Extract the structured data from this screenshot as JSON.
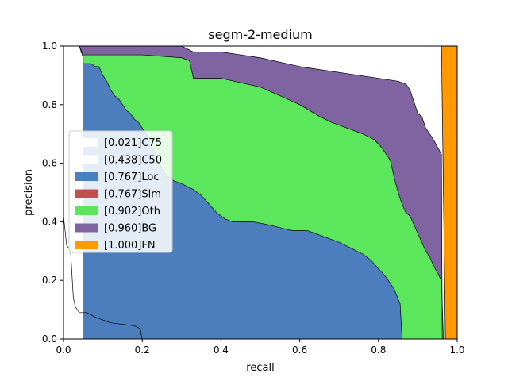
{
  "chart_data": {
    "type": "area",
    "title": "segm-2-medium",
    "xlabel": "recall",
    "ylabel": "precision",
    "xlim": [
      0,
      1
    ],
    "ylim": [
      0,
      1
    ],
    "xticks": [
      "0.0",
      "0.2",
      "0.4",
      "0.6",
      "0.8",
      "1.0"
    ],
    "yticks": [
      "0.0",
      "0.2",
      "0.4",
      "0.6",
      "0.8",
      "1.0"
    ],
    "grid": false,
    "legend_position": "center-left",
    "series": [
      {
        "name": "[0.021]C75",
        "color": "#ffffff",
        "points": [
          [
            0.0,
            0.42
          ],
          [
            0.008,
            0.32
          ],
          [
            0.018,
            0.3
          ],
          [
            0.025,
            0.14
          ],
          [
            0.03,
            0.11
          ],
          [
            0.04,
            0.09
          ],
          [
            0.06,
            0.09
          ],
          [
            0.08,
            0.075
          ],
          [
            0.1,
            0.065
          ],
          [
            0.11,
            0.06
          ],
          [
            0.12,
            0.055
          ],
          [
            0.15,
            0.05
          ],
          [
            0.18,
            0.045
          ],
          [
            0.195,
            0.035
          ],
          [
            0.198,
            0.01
          ],
          [
            0.2,
            0.0
          ]
        ]
      },
      {
        "name": "[0.438]C50",
        "color": "#ffffff",
        "points": [
          [
            0.0,
            0.42
          ],
          [
            0.008,
            0.32
          ],
          [
            0.018,
            0.3
          ],
          [
            0.025,
            0.14
          ],
          [
            0.03,
            0.11
          ],
          [
            0.04,
            0.09
          ],
          [
            0.06,
            0.09
          ],
          [
            0.08,
            0.075
          ],
          [
            0.1,
            0.065
          ],
          [
            0.11,
            0.06
          ],
          [
            0.12,
            0.055
          ],
          [
            0.15,
            0.05
          ],
          [
            0.18,
            0.045
          ],
          [
            0.195,
            0.035
          ],
          [
            0.198,
            0.01
          ],
          [
            0.2,
            0.0
          ]
        ]
      },
      {
        "name": "[0.767]Loc",
        "color": "#4c7ebd",
        "points": [
          [
            0.04,
            1.0
          ],
          [
            0.05,
            0.96
          ],
          [
            0.05,
            0.94
          ],
          [
            0.07,
            0.94
          ],
          [
            0.08,
            0.93
          ],
          [
            0.09,
            0.93
          ],
          [
            0.1,
            0.9
          ],
          [
            0.11,
            0.88
          ],
          [
            0.12,
            0.85
          ],
          [
            0.13,
            0.83
          ],
          [
            0.14,
            0.82
          ],
          [
            0.15,
            0.8
          ],
          [
            0.16,
            0.78
          ],
          [
            0.17,
            0.77
          ],
          [
            0.18,
            0.75
          ],
          [
            0.19,
            0.74
          ],
          [
            0.2,
            0.72
          ],
          [
            0.21,
            0.7
          ],
          [
            0.22,
            0.67
          ],
          [
            0.23,
            0.64
          ],
          [
            0.24,
            0.61
          ],
          [
            0.25,
            0.58
          ],
          [
            0.26,
            0.56
          ],
          [
            0.27,
            0.55
          ],
          [
            0.28,
            0.54
          ],
          [
            0.3,
            0.53
          ],
          [
            0.33,
            0.51
          ],
          [
            0.35,
            0.49
          ],
          [
            0.37,
            0.46
          ],
          [
            0.39,
            0.43
          ],
          [
            0.41,
            0.41
          ],
          [
            0.43,
            0.4
          ],
          [
            0.45,
            0.4
          ],
          [
            0.48,
            0.4
          ],
          [
            0.52,
            0.39
          ],
          [
            0.55,
            0.38
          ],
          [
            0.58,
            0.37
          ],
          [
            0.62,
            0.37
          ],
          [
            0.64,
            0.36
          ],
          [
            0.66,
            0.35
          ],
          [
            0.7,
            0.33
          ],
          [
            0.73,
            0.31
          ],
          [
            0.76,
            0.29
          ],
          [
            0.78,
            0.27
          ],
          [
            0.8,
            0.24
          ],
          [
            0.82,
            0.21
          ],
          [
            0.84,
            0.17
          ],
          [
            0.855,
            0.12
          ],
          [
            0.86,
            0.0
          ]
        ]
      },
      {
        "name": "[0.767]Sim",
        "color": "#c0504d",
        "points": []
      },
      {
        "name": "[0.902]Oth",
        "color": "#5ce65c",
        "points": [
          [
            0.04,
            1.0
          ],
          [
            0.05,
            0.97
          ],
          [
            0.1,
            0.97
          ],
          [
            0.2,
            0.97
          ],
          [
            0.3,
            0.96
          ],
          [
            0.32,
            0.95
          ],
          [
            0.33,
            0.89
          ],
          [
            0.4,
            0.89
          ],
          [
            0.5,
            0.86
          ],
          [
            0.55,
            0.83
          ],
          [
            0.6,
            0.8
          ],
          [
            0.65,
            0.76
          ],
          [
            0.68,
            0.74
          ],
          [
            0.72,
            0.72
          ],
          [
            0.76,
            0.7
          ],
          [
            0.79,
            0.68
          ],
          [
            0.81,
            0.65
          ],
          [
            0.83,
            0.61
          ],
          [
            0.84,
            0.55
          ],
          [
            0.85,
            0.5
          ],
          [
            0.86,
            0.46
          ],
          [
            0.87,
            0.43
          ],
          [
            0.88,
            0.42
          ],
          [
            0.89,
            0.39
          ],
          [
            0.9,
            0.36
          ],
          [
            0.91,
            0.33
          ],
          [
            0.92,
            0.3
          ],
          [
            0.93,
            0.28
          ],
          [
            0.94,
            0.25
          ],
          [
            0.96,
            0.2
          ],
          [
            0.965,
            0.0
          ]
        ]
      },
      {
        "name": "[0.960]BG",
        "color": "#8064a2",
        "points": [
          [
            0.05,
            1.0
          ],
          [
            0.3,
            1.0
          ],
          [
            0.33,
            0.98
          ],
          [
            0.4,
            0.98
          ],
          [
            0.45,
            0.97
          ],
          [
            0.5,
            0.96
          ],
          [
            0.6,
            0.93
          ],
          [
            0.7,
            0.91
          ],
          [
            0.8,
            0.89
          ],
          [
            0.85,
            0.88
          ],
          [
            0.87,
            0.87
          ],
          [
            0.88,
            0.85
          ],
          [
            0.89,
            0.81
          ],
          [
            0.9,
            0.77
          ],
          [
            0.91,
            0.76
          ],
          [
            0.92,
            0.72
          ],
          [
            0.94,
            0.68
          ],
          [
            0.96,
            0.63
          ],
          [
            0.962,
            0.0
          ]
        ]
      },
      {
        "name": "[1.000]FN",
        "color": "#ff9900",
        "points": [
          [
            0.96,
            1.0
          ],
          [
            1.0,
            1.0
          ],
          [
            1.0,
            0.0
          ],
          [
            0.97,
            0.0
          ]
        ]
      }
    ]
  }
}
